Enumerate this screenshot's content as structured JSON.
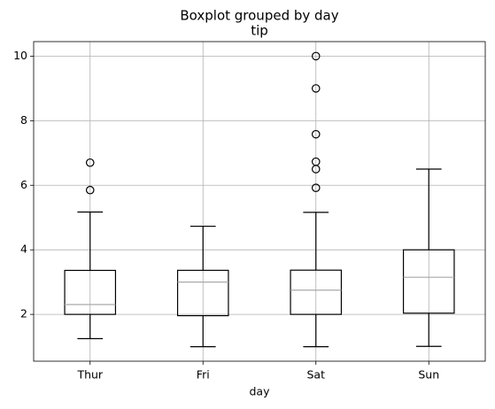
{
  "chart_data": {
    "type": "boxplot",
    "suptitle": "Boxplot grouped by day",
    "title": "tip",
    "x_label": "day",
    "categories": [
      "Thur",
      "Fri",
      "Sat",
      "Sun"
    ],
    "boxes": [
      {
        "min": 1.25,
        "q1": 2.0,
        "median": 2.305,
        "q3": 3.3625,
        "max": 5.17,
        "outliers": [
          5.85,
          6.7
        ]
      },
      {
        "min": 1.0,
        "q1": 1.96,
        "median": 3.0,
        "q3": 3.365,
        "max": 4.73,
        "outliers": []
      },
      {
        "min": 1.0,
        "q1": 2.0,
        "median": 2.75,
        "q3": 3.37,
        "max": 5.16,
        "outliers": [
          5.92,
          6.5,
          6.73,
          7.58,
          9.0,
          10.0
        ]
      },
      {
        "min": 1.01,
        "q1": 2.0375,
        "median": 3.15,
        "q3": 4.0,
        "max": 6.5,
        "outliers": []
      }
    ],
    "ylim": [
      0.55,
      10.45
    ],
    "yticks": [
      2,
      4,
      6,
      8,
      10
    ],
    "grid": true,
    "box_color": "#000000",
    "median_color": "#a9a9a9"
  }
}
